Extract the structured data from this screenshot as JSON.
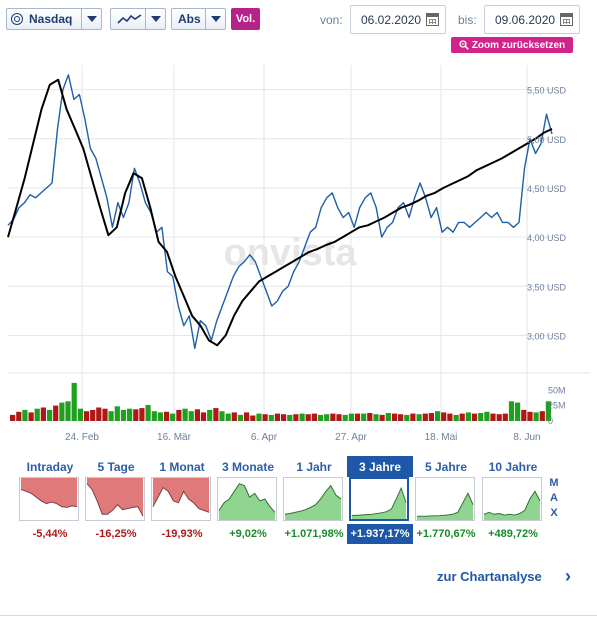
{
  "toolbar": {
    "symbol": "Nasdaq",
    "scale": "Abs",
    "volume_label": "Vol.",
    "from_label": "von:",
    "from_date": "06.02.2020",
    "to_label": "bis:",
    "to_date": "09.06.2020",
    "zoom_reset": "Zoom zurücksetzen",
    "icons": [
      "chevron-down-icon",
      "line-chart-icon",
      "calendar-icon",
      "zoom-out-icon"
    ]
  },
  "colors": {
    "price_line": "#1f5fa8",
    "average_line": "#000000",
    "volume_up": "#1fa01f",
    "volume_down": "#b01818",
    "accent": "#b5238a",
    "tab_active": "#1f57a8"
  },
  "chart_data": {
    "type": "line",
    "watermark": "onvista",
    "y_ticks": [
      "5,50 USD",
      "5,00 USD",
      "4,50 USD",
      "4,00 USD",
      "3,50 USD",
      "3,00 USD"
    ],
    "ylim": [
      2.7,
      5.75
    ],
    "x_ticks": [
      "24. Feb",
      "16. Mär",
      "6. Apr",
      "27. Apr",
      "18. Mai",
      "8. Jun"
    ],
    "volume_ticks": [
      "50M",
      "25M",
      "0"
    ],
    "series": [
      {
        "key": "price",
        "values": [
          4.12,
          4.18,
          4.3,
          4.35,
          4.43,
          4.4,
          4.45,
          4.5,
          4.55,
          5.1,
          5.5,
          5.65,
          5.4,
          5.45,
          5.2,
          4.9,
          4.8,
          4.6,
          4.4,
          4.1,
          4.35,
          4.2,
          4.35,
          4.7,
          4.55,
          4.35,
          4.25,
          4.05,
          4.1,
          3.65,
          3.6,
          3.3,
          3.1,
          3.2,
          2.87,
          3.15,
          3.1,
          2.95,
          3.15,
          3.3,
          3.45,
          3.6,
          3.7,
          3.75,
          3.82,
          3.75,
          3.6,
          3.45,
          3.3,
          3.35,
          3.45,
          3.5,
          3.65,
          3.75,
          3.9,
          4.05,
          4.1,
          4.3,
          4.4,
          4.45,
          4.3,
          4.2,
          4.25,
          4.1,
          4.3,
          4.4,
          4.45,
          4.3,
          4.0,
          4.1,
          4.15,
          4.3,
          4.35,
          4.2,
          4.4,
          4.55,
          4.4,
          4.2,
          4.3,
          4.05,
          4.1,
          4.05,
          4.15,
          4.15,
          4.1,
          4.15,
          4.2,
          4.25,
          4.2,
          4.25,
          4.15,
          4.15,
          4.1,
          4.15,
          4.7,
          5.0,
          4.85,
          4.95,
          5.25,
          5.05
        ]
      },
      {
        "key": "average",
        "values": [
          4.0,
          4.3,
          4.6,
          4.95,
          5.3,
          5.55,
          5.6,
          5.3,
          5.1,
          4.9,
          4.6,
          4.3,
          4.02,
          4.1,
          4.45,
          4.65,
          4.6,
          4.3,
          3.95,
          3.85,
          3.6,
          3.4,
          3.2,
          3.1,
          2.95,
          2.9,
          3.0,
          3.2,
          3.35,
          3.45,
          3.55,
          3.6,
          3.65,
          3.7,
          3.75,
          3.8,
          3.85,
          3.88,
          3.92,
          3.95,
          4.0,
          4.05,
          4.1,
          4.12,
          4.16,
          4.2,
          4.25,
          4.3,
          4.33,
          4.37,
          4.42,
          4.45,
          4.5,
          4.54,
          4.58,
          4.62,
          4.68,
          4.72,
          4.76,
          4.8,
          4.85,
          4.9,
          4.95,
          5.0,
          5.06,
          5.1
        ]
      }
    ],
    "volume": [
      10,
      15,
      18,
      14,
      20,
      22,
      18,
      25,
      30,
      32,
      62,
      20,
      16,
      18,
      22,
      20,
      16,
      24,
      18,
      20,
      19,
      21,
      26,
      16,
      14,
      15,
      12,
      18,
      20,
      16,
      19,
      14,
      18,
      21,
      16,
      12,
      14,
      10,
      14,
      9,
      12,
      11,
      10,
      12,
      11,
      10,
      11,
      12,
      11,
      12,
      10,
      11,
      12,
      11,
      10,
      12,
      12,
      12,
      13,
      11,
      10,
      13,
      12,
      11,
      10,
      12,
      11,
      12,
      13,
      16,
      14,
      12,
      10,
      12,
      14,
      12,
      13,
      15,
      12,
      11,
      12,
      32,
      30,
      18,
      15,
      14,
      16,
      32
    ],
    "volume_up": [
      false,
      false,
      true,
      false,
      true,
      false,
      true,
      false,
      true,
      true,
      true,
      true,
      false,
      false,
      false,
      false,
      true,
      true,
      true,
      true,
      false,
      false,
      true,
      true,
      true,
      false,
      true,
      false,
      true,
      true,
      false,
      false,
      true,
      false,
      true,
      true,
      false,
      true,
      false,
      false,
      true,
      false,
      true,
      false,
      false,
      true,
      false,
      true,
      false,
      false,
      true,
      true,
      false,
      false,
      true,
      true,
      false,
      true,
      false,
      true,
      false,
      true,
      false,
      false,
      true,
      false,
      true,
      false,
      false,
      true,
      false,
      false,
      true,
      false,
      true,
      false,
      true,
      true,
      false,
      false,
      false,
      true,
      true,
      false,
      false,
      true,
      false,
      true
    ],
    "volume_ylim": [
      0,
      70
    ]
  },
  "periods": [
    {
      "label": "Intraday",
      "value": "-5,44%",
      "trend": "neg",
      "active": false,
      "spark": [
        0.25,
        0.3,
        0.35,
        0.45,
        0.55,
        0.62,
        0.58,
        0.62,
        0.7,
        0.72,
        0.68,
        0.7
      ]
    },
    {
      "label": "5 Tage",
      "value": "-16,25%",
      "trend": "neg",
      "active": false,
      "spark": [
        0.1,
        0.25,
        0.55,
        0.9,
        0.9,
        0.8,
        0.65,
        0.78,
        0.75,
        0.72,
        0.7,
        0.95
      ]
    },
    {
      "label": "1 Monat",
      "value": "-19,93%",
      "trend": "neg",
      "active": false,
      "spark": [
        0.7,
        0.45,
        0.2,
        0.3,
        0.55,
        0.6,
        0.3,
        0.5,
        0.6,
        0.75,
        0.8,
        0.85
      ]
    },
    {
      "label": "3 Monate",
      "value": "+9,02%",
      "trend": "pos",
      "active": false,
      "spark": [
        0.8,
        0.6,
        0.5,
        0.3,
        0.1,
        0.15,
        0.45,
        0.35,
        0.55,
        0.5,
        0.7,
        0.85
      ]
    },
    {
      "label": "1 Jahr",
      "value": "+1.071,98%",
      "trend": "pos",
      "active": false,
      "spark": [
        0.9,
        0.88,
        0.85,
        0.82,
        0.78,
        0.72,
        0.65,
        0.5,
        0.3,
        0.15,
        0.4,
        0.5
      ]
    },
    {
      "label": "3 Jahre",
      "value": "+1.937,17%",
      "trend": "pos",
      "active": true,
      "spark": [
        0.95,
        0.95,
        0.94,
        0.93,
        0.92,
        0.9,
        0.88,
        0.85,
        0.78,
        0.5,
        0.2,
        0.6
      ]
    },
    {
      "label": "5 Jahre",
      "value": "+1.770,67%",
      "trend": "pos",
      "active": false,
      "spark": [
        0.95,
        0.95,
        0.95,
        0.94,
        0.94,
        0.93,
        0.92,
        0.9,
        0.85,
        0.6,
        0.35,
        0.65
      ]
    },
    {
      "label": "10 Jahre",
      "value": "+489,72%",
      "trend": "pos",
      "active": false,
      "spark": [
        0.9,
        0.85,
        0.9,
        0.88,
        0.92,
        0.9,
        0.92,
        0.88,
        0.8,
        0.5,
        0.3,
        0.55
      ]
    }
  ],
  "max_label": "MAX",
  "cta": "zur Chartanalyse"
}
